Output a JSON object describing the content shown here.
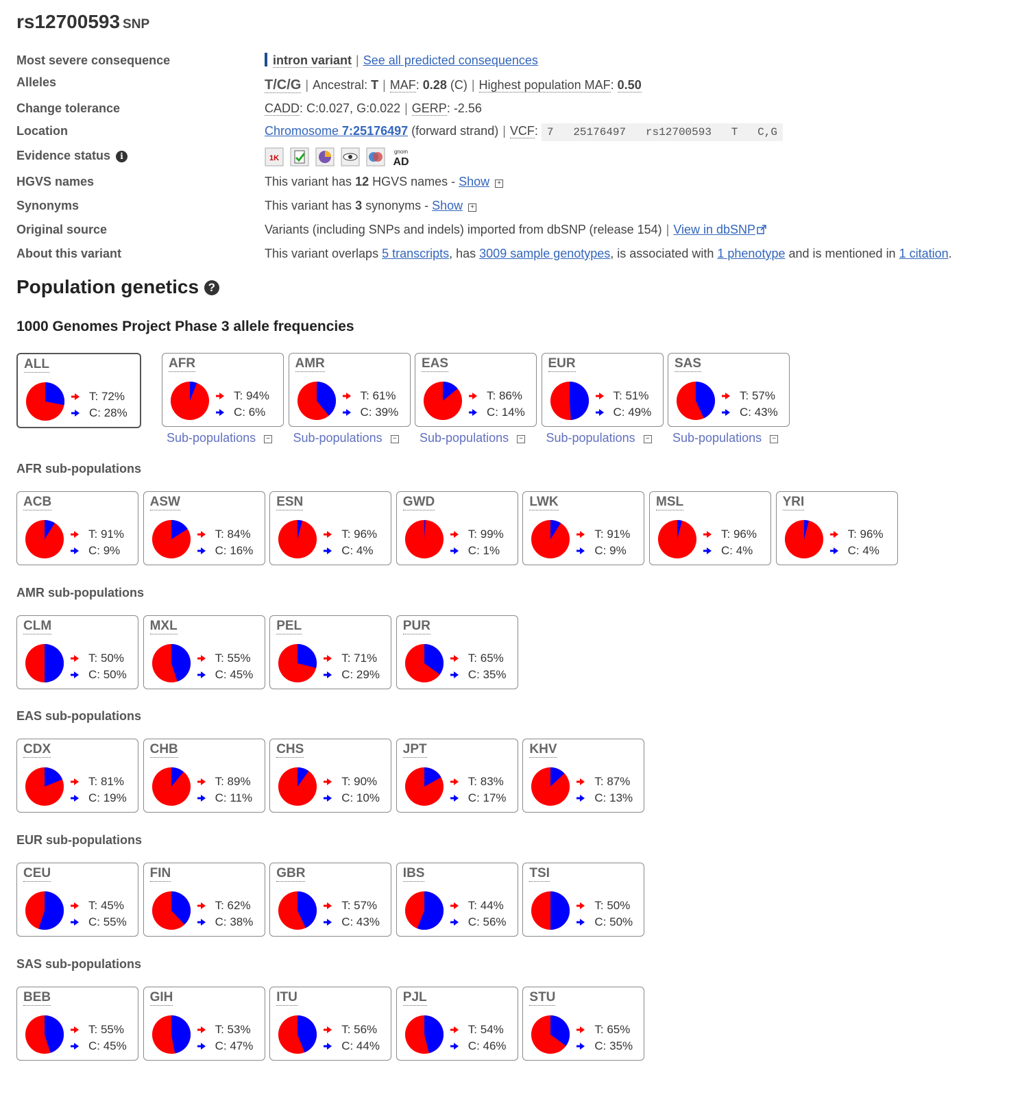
{
  "variant": {
    "id": "rs12700593",
    "type": "SNP"
  },
  "summary": {
    "labels": {
      "consequence": "Most severe consequence",
      "alleles": "Alleles",
      "tolerance": "Change tolerance",
      "location": "Location",
      "evidence": "Evidence status",
      "hgvs": "HGVS names",
      "synonyms": "Synonyms",
      "source": "Original source",
      "about": "About this variant"
    },
    "consequence": {
      "value": "intron variant",
      "link": "See all predicted consequences",
      "bar_color": "#1f4e8c"
    },
    "alleles": {
      "value": "T/C/G",
      "ancestral_label": "Ancestral:",
      "ancestral_value": "T",
      "maf_label": "MAF",
      "maf_value": "0.28",
      "maf_allele": "(C)",
      "highest_label": "Highest population MAF",
      "highest_value": "0.50"
    },
    "tolerance": {
      "cadd_label": "CADD",
      "cadd_value": ": C:0.027, G:0.022",
      "gerp_label": "GERP",
      "gerp_value": ": -2.56"
    },
    "location": {
      "chrom_text": "Chromosome ",
      "chrom_bold": "7:25176497",
      "strand": "(forward strand)",
      "vcf_label": "VCF",
      "vcf_value": "7   25176497   rs12700593   T   C,G"
    },
    "evidence_icons": [
      "1000-genomes-icon",
      "cited-icon",
      "phenotype-icon",
      "frequency-icon",
      "hapmap-icon",
      "gnomad-icon"
    ],
    "gnomad_text": {
      "top": "gnom",
      "bottom": "AD"
    },
    "hgvs": {
      "prefix": "This variant has ",
      "count": "12",
      "suffix": " HGVS names - ",
      "show": "Show"
    },
    "synonyms": {
      "prefix": "This variant has ",
      "count": "3",
      "suffix": " synonyms - ",
      "show": "Show"
    },
    "source": {
      "text": "Variants (including SNPs and indels) imported from dbSNP (release 154)",
      "link": "View in dbSNP"
    },
    "about": {
      "t1": "This variant overlaps ",
      "l1": "5 transcripts",
      "t2": ", has ",
      "l2": "3009 sample genotypes",
      "t3": ", is associated with ",
      "l3": "1 phenotype",
      "t4": " and is mentioned in ",
      "l4": "1 citation",
      "t5": "."
    }
  },
  "population": {
    "title": "Population genetics",
    "kg_title": "1000 Genomes Project Phase 3 allele frequencies",
    "subpop_link": "Sub-populations",
    "colors": {
      "T": "#ff0000",
      "C": "#0000ff"
    },
    "main": [
      {
        "code": "ALL",
        "t": "T: 72%",
        "c": "C: 28%",
        "tf": 0.72
      },
      {
        "code": "AFR",
        "t": "T: 94%",
        "c": "C: 6%",
        "tf": 0.94
      },
      {
        "code": "AMR",
        "t": "T: 61%",
        "c": "C: 39%",
        "tf": 0.61
      },
      {
        "code": "EAS",
        "t": "T: 86%",
        "c": "C: 14%",
        "tf": 0.86
      },
      {
        "code": "EUR",
        "t": "T: 51%",
        "c": "C: 49%",
        "tf": 0.51
      },
      {
        "code": "SAS",
        "t": "T: 57%",
        "c": "C: 43%",
        "tf": 0.57
      }
    ],
    "groups": [
      {
        "title": "AFR sub-populations",
        "pops": [
          {
            "code": "ACB",
            "t": "T: 91%",
            "c": "C: 9%",
            "tf": 0.91
          },
          {
            "code": "ASW",
            "t": "T: 84%",
            "c": "C: 16%",
            "tf": 0.84
          },
          {
            "code": "ESN",
            "t": "T: 96%",
            "c": "C: 4%",
            "tf": 0.96
          },
          {
            "code": "GWD",
            "t": "T: 99%",
            "c": "C: 1%",
            "tf": 0.99
          },
          {
            "code": "LWK",
            "t": "T: 91%",
            "c": "C: 9%",
            "tf": 0.91
          },
          {
            "code": "MSL",
            "t": "T: 96%",
            "c": "C: 4%",
            "tf": 0.96
          },
          {
            "code": "YRI",
            "t": "T: 96%",
            "c": "C: 4%",
            "tf": 0.96
          }
        ]
      },
      {
        "title": "AMR sub-populations",
        "pops": [
          {
            "code": "CLM",
            "t": "T: 50%",
            "c": "C: 50%",
            "tf": 0.5
          },
          {
            "code": "MXL",
            "t": "T: 55%",
            "c": "C: 45%",
            "tf": 0.55
          },
          {
            "code": "PEL",
            "t": "T: 71%",
            "c": "C: 29%",
            "tf": 0.71
          },
          {
            "code": "PUR",
            "t": "T: 65%",
            "c": "C: 35%",
            "tf": 0.65
          }
        ]
      },
      {
        "title": "EAS sub-populations",
        "pops": [
          {
            "code": "CDX",
            "t": "T: 81%",
            "c": "C: 19%",
            "tf": 0.81
          },
          {
            "code": "CHB",
            "t": "T: 89%",
            "c": "C: 11%",
            "tf": 0.89
          },
          {
            "code": "CHS",
            "t": "T: 90%",
            "c": "C: 10%",
            "tf": 0.9
          },
          {
            "code": "JPT",
            "t": "T: 83%",
            "c": "C: 17%",
            "tf": 0.83
          },
          {
            "code": "KHV",
            "t": "T: 87%",
            "c": "C: 13%",
            "tf": 0.87
          }
        ]
      },
      {
        "title": "EUR sub-populations",
        "pops": [
          {
            "code": "CEU",
            "t": "T: 45%",
            "c": "C: 55%",
            "tf": 0.45
          },
          {
            "code": "FIN",
            "t": "T: 62%",
            "c": "C: 38%",
            "tf": 0.62
          },
          {
            "code": "GBR",
            "t": "T: 57%",
            "c": "C: 43%",
            "tf": 0.57
          },
          {
            "code": "IBS",
            "t": "T: 44%",
            "c": "C: 56%",
            "tf": 0.44
          },
          {
            "code": "TSI",
            "t": "T: 50%",
            "c": "C: 50%",
            "tf": 0.5
          }
        ]
      },
      {
        "title": "SAS sub-populations",
        "pops": [
          {
            "code": "BEB",
            "t": "T: 55%",
            "c": "C: 45%",
            "tf": 0.55
          },
          {
            "code": "GIH",
            "t": "T: 53%",
            "c": "C: 47%",
            "tf": 0.53
          },
          {
            "code": "ITU",
            "t": "T: 56%",
            "c": "C: 44%",
            "tf": 0.56
          },
          {
            "code": "PJL",
            "t": "T: 54%",
            "c": "C: 46%",
            "tf": 0.54
          },
          {
            "code": "STU",
            "t": "T: 65%",
            "c": "C: 35%",
            "tf": 0.65
          }
        ]
      }
    ]
  }
}
